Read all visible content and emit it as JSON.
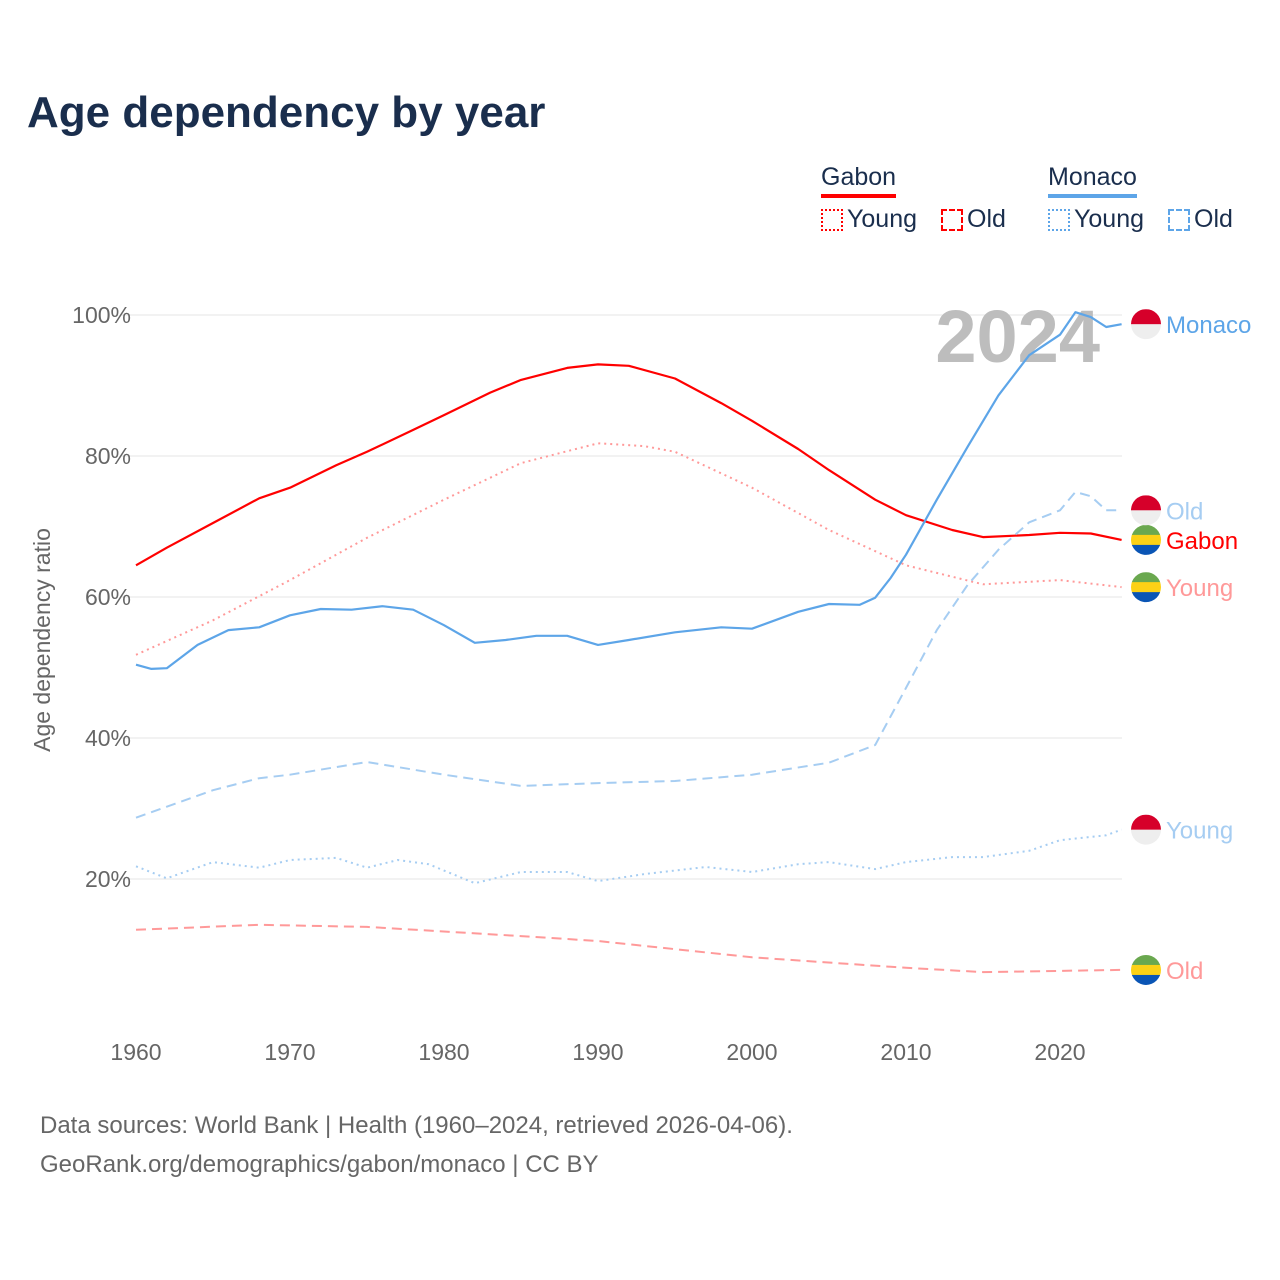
{
  "title": "Age dependency by year",
  "legend": {
    "gabon": {
      "label": "Gabon",
      "young": "Young",
      "old": "Old"
    },
    "monaco": {
      "label": "Monaco",
      "young": "Young",
      "old": "Old"
    }
  },
  "colors": {
    "gabon": "#ff0000",
    "gabon_light": "#ff9999",
    "monaco": "#5da5e8",
    "monaco_light": "#a6cdf2",
    "text": "#1a2e4d",
    "grid": "#e6e6e6"
  },
  "footer": {
    "line1": "Data sources: World Bank | Health (1960–2024, retrieved 2026-04-06).",
    "line2": "GeoRank.org/demographics/gabon/monaco | CC BY"
  },
  "chart_data": {
    "type": "line",
    "title": "Age dependency by year",
    "xlabel": "",
    "ylabel": "Age dependency ratio",
    "xlim": [
      1960,
      2024
    ],
    "ylim": [
      0,
      105
    ],
    "x_ticks": [
      "1960",
      "1970",
      "1980",
      "1990",
      "2000",
      "2010",
      "2020"
    ],
    "y_ticks": [
      "20%",
      "40%",
      "60%",
      "80%",
      "100%"
    ],
    "year_label": "2024",
    "grid": true,
    "legend_position": "top-right",
    "series": [
      {
        "name": "Gabon",
        "end_label": "Gabon",
        "country": "gabon",
        "style": "solid",
        "color": "#ff0000",
        "x": [
          1960,
          1962,
          1965,
          1968,
          1970,
          1973,
          1975,
          1978,
          1980,
          1983,
          1985,
          1988,
          1990,
          1992,
          1995,
          1998,
          2000,
          2003,
          2005,
          2008,
          2010,
          2013,
          2015,
          2018,
          2020,
          2022,
          2024
        ],
        "y": [
          64.5,
          67,
          70.5,
          74,
          75.5,
          78.7,
          80.6,
          83.7,
          85.8,
          89,
          90.8,
          92.5,
          93,
          92.8,
          91,
          87.5,
          85,
          81,
          78,
          73.8,
          71.6,
          69.5,
          68.5,
          68.8,
          69.1,
          69,
          68.1
        ]
      },
      {
        "name": "Gabon Young",
        "end_label": "Young",
        "country": "gabon",
        "style": "dotted",
        "color": "#ff9999",
        "x": [
          1960,
          1965,
          1970,
          1975,
          1980,
          1985,
          1990,
          1993,
          1995,
          2000,
          2005,
          2010,
          2015,
          2020,
          2024
        ],
        "y": [
          51.8,
          56.7,
          62.4,
          68.4,
          73.8,
          79,
          81.8,
          81.4,
          80.6,
          75.5,
          69.5,
          64.5,
          61.8,
          62.4,
          61.4
        ]
      },
      {
        "name": "Gabon Old",
        "end_label": "Old",
        "country": "gabon",
        "style": "dashed",
        "color": "#ff9999",
        "x": [
          1960,
          1968,
          1975,
          1985,
          1990,
          2000,
          2010,
          2015,
          2024
        ],
        "y": [
          12.8,
          13.5,
          13.2,
          11.9,
          11.2,
          8.9,
          7.4,
          6.8,
          7.1
        ]
      },
      {
        "name": "Monaco",
        "end_label": "Monaco",
        "country": "monaco",
        "style": "solid",
        "color": "#5da5e8",
        "x": [
          1960,
          1961,
          1962,
          1964,
          1966,
          1968,
          1970,
          1972,
          1974,
          1976,
          1978,
          1980,
          1982,
          1984,
          1986,
          1988,
          1990,
          1992,
          1995,
          1998,
          2000,
          2003,
          2005,
          2007,
          2008,
          2009,
          2010,
          2012,
          2014,
          2016,
          2018,
          2020,
          2021,
          2022,
          2023,
          2024
        ],
        "y": [
          50.4,
          49.8,
          49.9,
          53.2,
          55.3,
          55.7,
          57.4,
          58.3,
          58.2,
          58.7,
          58.2,
          56,
          53.5,
          53.9,
          54.5,
          54.5,
          53.2,
          53.9,
          55,
          55.7,
          55.5,
          57.9,
          59,
          58.9,
          59.9,
          62.7,
          66,
          73.8,
          81.3,
          88.6,
          94.3,
          97.2,
          100.4,
          99.7,
          98.3,
          98.7
        ]
      },
      {
        "name": "Monaco Old",
        "end_label": "Old",
        "country": "monaco",
        "style": "dashed",
        "color": "#a6cdf2",
        "x": [
          1960,
          1965,
          1968,
          1970,
          1975,
          1980,
          1985,
          1990,
          1995,
          2000,
          2005,
          2008,
          2010,
          2012,
          2014,
          2016,
          2018,
          2020,
          2021,
          2022,
          2023,
          2024
        ],
        "y": [
          28.7,
          32.6,
          34.3,
          34.8,
          36.6,
          34.8,
          33.2,
          33.6,
          33.9,
          34.8,
          36.5,
          39,
          47.1,
          55.3,
          61.7,
          66.7,
          70.6,
          72.3,
          74.9,
          74.3,
          72.3,
          72.3
        ]
      },
      {
        "name": "Monaco Young",
        "end_label": "Young",
        "country": "monaco",
        "style": "dotted",
        "color": "#a6cdf2",
        "x": [
          1960,
          1962,
          1965,
          1968,
          1970,
          1973,
          1975,
          1977,
          1979,
          1982,
          1985,
          1988,
          1990,
          1993,
          1997,
          2000,
          2003,
          2005,
          2008,
          2010,
          2013,
          2015,
          2018,
          2020,
          2023,
          2024
        ],
        "y": [
          21.8,
          20.1,
          22.4,
          21.6,
          22.7,
          23,
          21.6,
          22.7,
          22.1,
          19.4,
          21,
          21,
          19.7,
          20.7,
          21.7,
          21,
          22.1,
          22.4,
          21.4,
          22.4,
          23.1,
          23.1,
          24,
          25.5,
          26.2,
          27
        ]
      }
    ]
  }
}
